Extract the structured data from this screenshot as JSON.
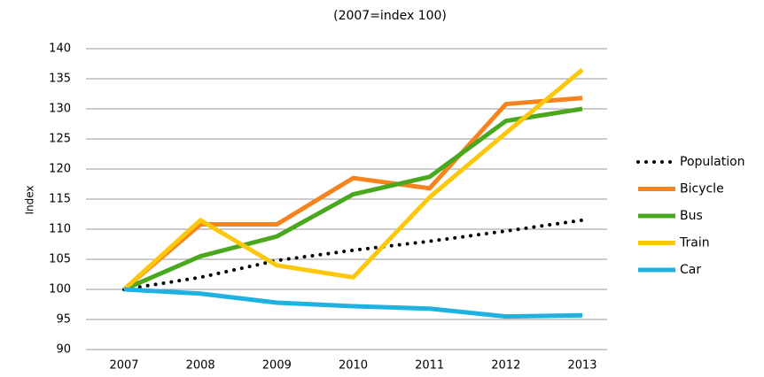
{
  "chart_data": {
    "type": "line",
    "subtitle": "(2007=index 100)",
    "y_label": "Index",
    "categories": [
      "2007",
      "2008",
      "2009",
      "2010",
      "2011",
      "2012",
      "2013"
    ],
    "series": [
      {
        "name": "Population",
        "color": "#000000",
        "style": "dotted",
        "values": [
          100,
          102,
          104.8,
          106.5,
          108,
          109.7,
          111.5
        ]
      },
      {
        "name": "Bicycle",
        "color": "#f7831e",
        "style": "solid",
        "values": [
          100,
          110.8,
          110.8,
          118.5,
          116.8,
          130.8,
          131.8
        ]
      },
      {
        "name": "Bus",
        "color": "#4aa81e",
        "style": "solid",
        "values": [
          100,
          105.5,
          108.8,
          115.8,
          118.7,
          128,
          130
        ]
      },
      {
        "name": "Train",
        "color": "#fdc80c",
        "style": "solid",
        "values": [
          100,
          111.5,
          104,
          102,
          115.3,
          126,
          136.5
        ]
      },
      {
        "name": "Car",
        "color": "#1fb1e0",
        "style": "solid",
        "values": [
          100,
          99.3,
          97.8,
          97.2,
          96.8,
          95.5,
          95.7
        ]
      }
    ],
    "ylim": [
      90,
      140
    ],
    "yticks": [
      90,
      95,
      100,
      105,
      110,
      115,
      120,
      125,
      130,
      135,
      140
    ],
    "grid": true,
    "legend": "right"
  }
}
